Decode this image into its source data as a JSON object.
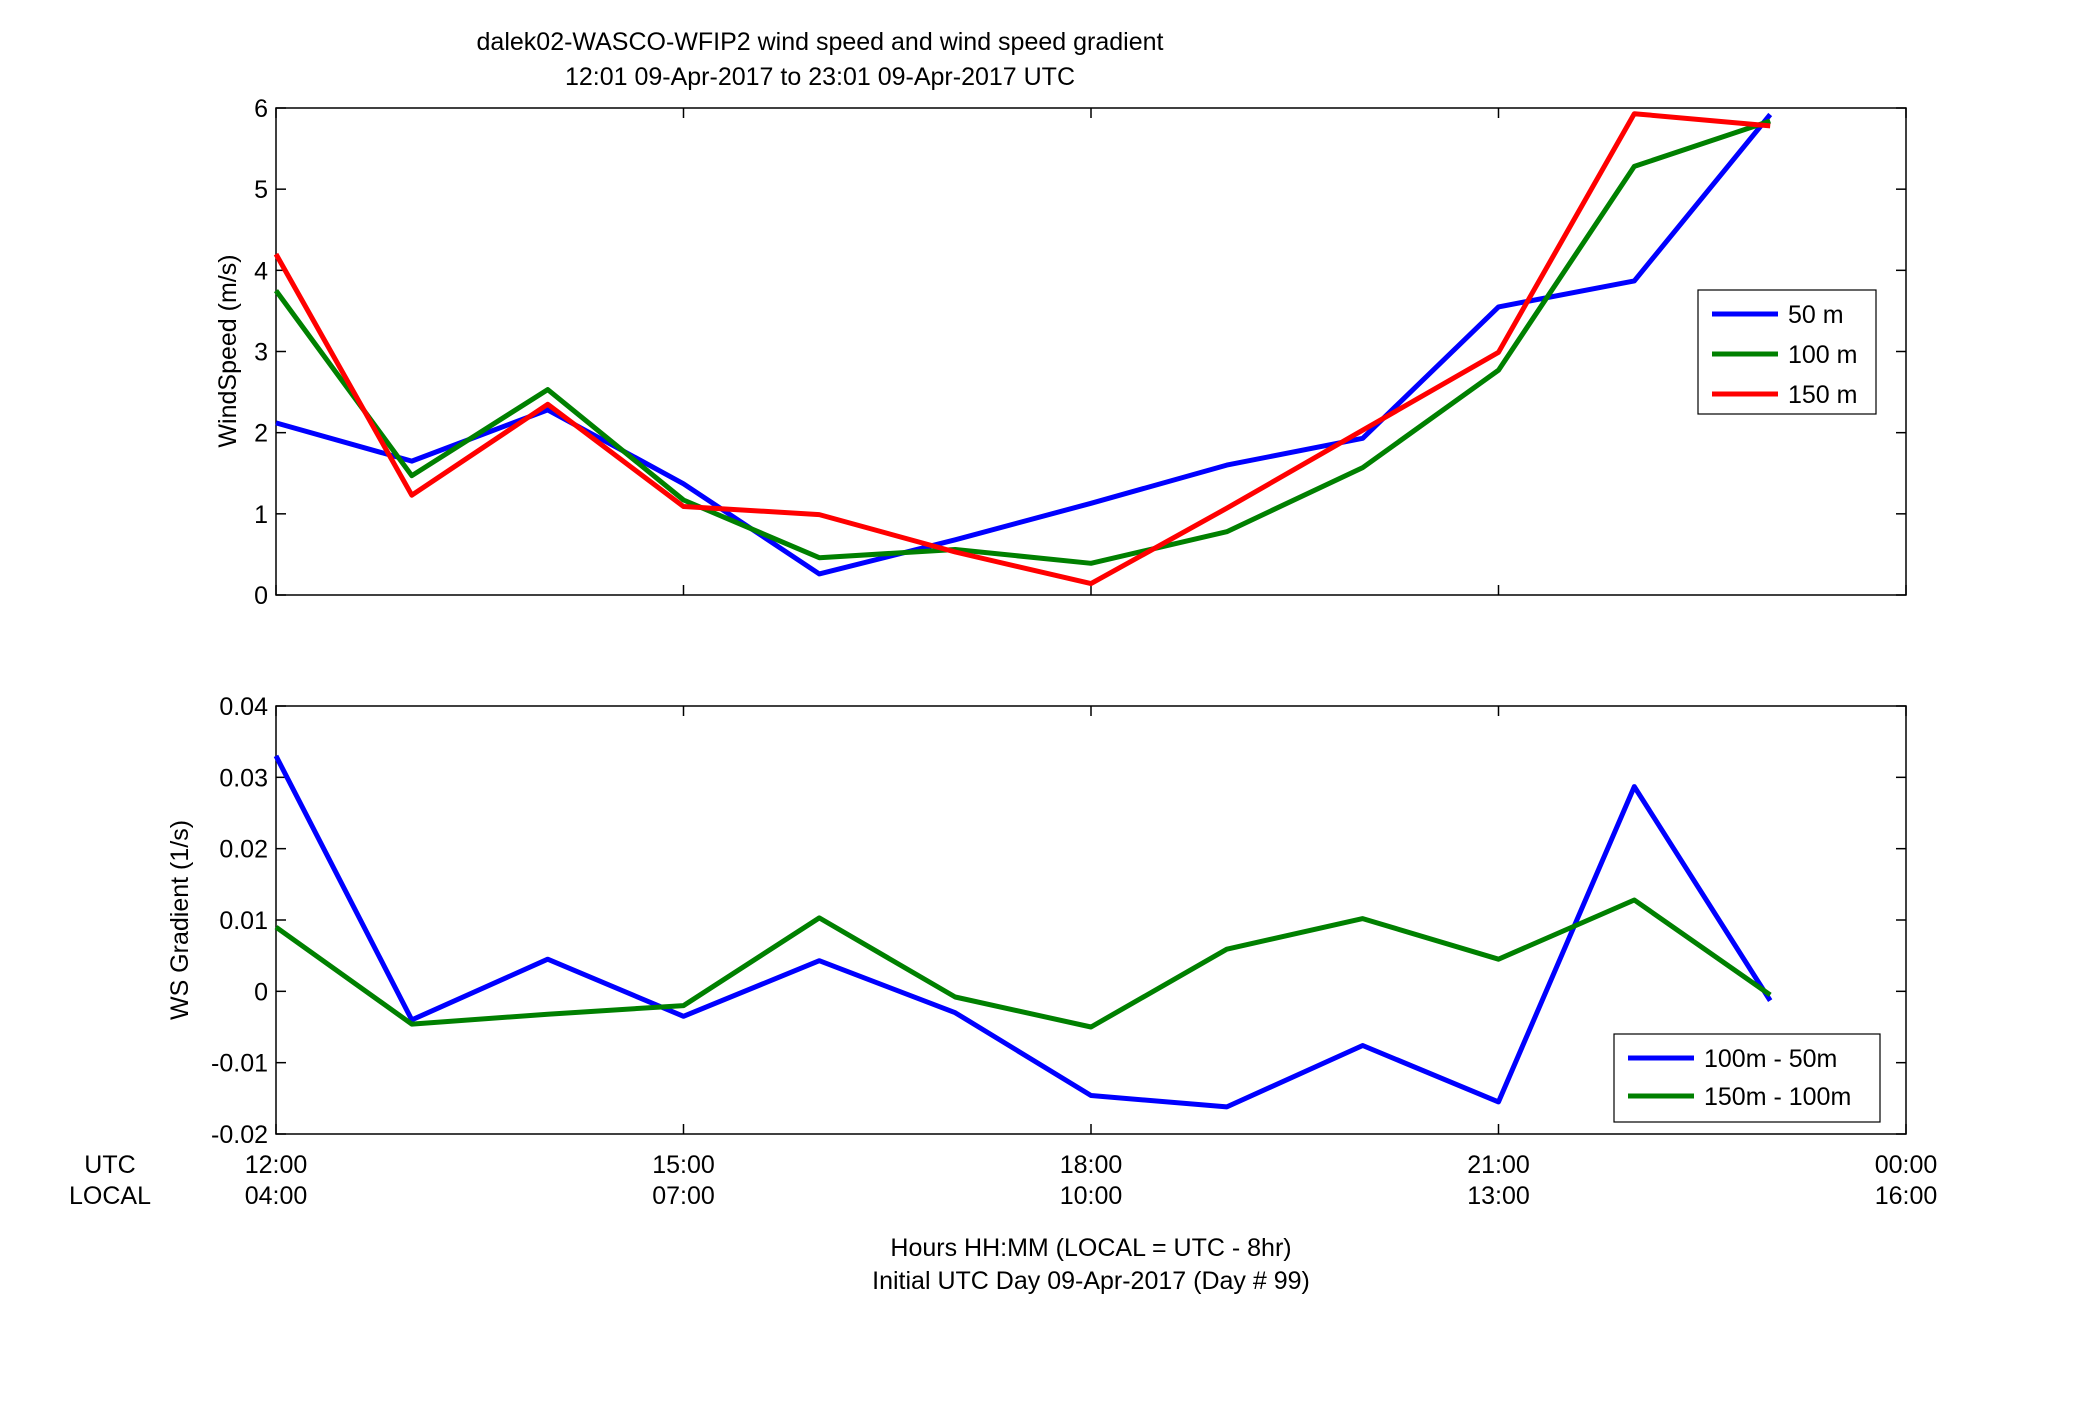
{
  "figure": {
    "title_line1": "dalek02-WASCO-WFIP2  wind speed and wind speed gradient",
    "title_line2": "12:01 09-Apr-2017 to 23:01 09-Apr-2017  UTC",
    "row_label_utc": "UTC",
    "row_label_local": "LOCAL",
    "xlabel_line1": "Hours HH:MM  (LOCAL = UTC - 8hr)",
    "xlabel_line2": "Initial UTC Day 09-Apr-2017 (Day # 99)"
  },
  "chart_data": [
    {
      "type": "line",
      "ylabel": "WindSpeed (m/s)",
      "xlim": [
        12,
        24
      ],
      "ylim": [
        0,
        6
      ],
      "yticks": [
        0,
        1,
        2,
        3,
        4,
        5,
        6
      ],
      "ytick_labels": [
        "0",
        "1",
        "2",
        "3",
        "4",
        "5",
        "6"
      ],
      "xticks": [
        12,
        15,
        18,
        21,
        24
      ],
      "xtick_labels": [],
      "grid": false,
      "legend_position": "right",
      "x": [
        12.0,
        13.0,
        14.0,
        15.0,
        16.0,
        17.0,
        18.0,
        19.0,
        20.0,
        21.0,
        22.0,
        23.0
      ],
      "series": [
        {
          "name": "50 m",
          "color": "#0000ff",
          "values": [
            2.12,
            1.65,
            2.28,
            1.37,
            0.26,
            0.68,
            1.13,
            1.6,
            1.93,
            3.55,
            3.87,
            5.92
          ]
        },
        {
          "name": "100 m",
          "color": "#008000",
          "values": [
            3.75,
            1.47,
            2.53,
            1.17,
            0.46,
            0.56,
            0.39,
            0.78,
            1.57,
            2.77,
            5.28,
            5.84
          ]
        },
        {
          "name": "150 m",
          "color": "#ff0000",
          "values": [
            4.2,
            1.23,
            2.35,
            1.09,
            0.99,
            0.53,
            0.14,
            1.07,
            2.03,
            2.99,
            5.93,
            5.78
          ]
        }
      ]
    },
    {
      "type": "line",
      "ylabel": "WS Gradient (1/s)",
      "xlim": [
        12,
        24
      ],
      "ylim": [
        -0.02,
        0.04
      ],
      "yticks": [
        -0.02,
        -0.01,
        0,
        0.01,
        0.02,
        0.03,
        0.04
      ],
      "ytick_labels": [
        "-0.02",
        "-0.01",
        "0",
        "0.01",
        "0.02",
        "0.03",
        "0.04"
      ],
      "xticks": [
        12,
        15,
        18,
        21,
        24
      ],
      "xtick_labels_utc": [
        "12:00",
        "15:00",
        "18:00",
        "21:00",
        "00:00"
      ],
      "xtick_labels_local": [
        "04:00",
        "07:00",
        "10:00",
        "13:00",
        "16:00"
      ],
      "grid": false,
      "legend_position": "lower-right",
      "x": [
        12.0,
        13.0,
        14.0,
        15.0,
        16.0,
        17.0,
        18.0,
        19.0,
        20.0,
        21.0,
        22.0,
        23.0
      ],
      "series": [
        {
          "name": "100m - 50m",
          "color": "#0000ff",
          "values": [
            0.033,
            -0.004,
            0.0045,
            -0.0035,
            0.0043,
            -0.003,
            -0.0146,
            -0.0162,
            -0.0076,
            -0.0155,
            0.0287,
            -0.0013
          ]
        },
        {
          "name": "150m - 100m",
          "color": "#008000",
          "values": [
            0.009,
            -0.0046,
            -0.0032,
            -0.002,
            0.0103,
            -0.0008,
            -0.005,
            0.0059,
            0.0102,
            0.0045,
            0.0128,
            -0.0005
          ]
        }
      ]
    }
  ]
}
